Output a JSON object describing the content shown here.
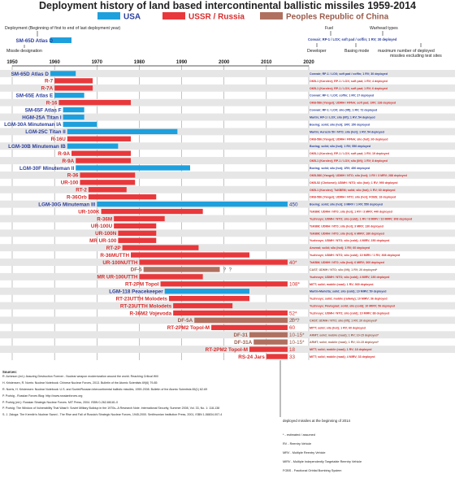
{
  "colors": {
    "usa": "#1ea0dd",
    "ussr": "#e8383b",
    "china": "#b07060",
    "ussr_label": "#d62b2b",
    "usa_label": "#2a3f9d",
    "china_label": "#9a5a4a",
    "grid": "#888888",
    "band": "#e6e6e6"
  },
  "chart_data": {
    "type": "bar",
    "title": "Deployment history of land based intercontinental ballistic missiles 1959-2014",
    "xlim": [
      1950,
      2020
    ],
    "xticks": [
      1950,
      1960,
      1970,
      1980,
      1990,
      2000,
      2010,
      2020
    ],
    "legend": [
      {
        "name": "USA",
        "country": "usa"
      },
      {
        "name": "USSR / Russia",
        "country": "ussr"
      },
      {
        "name": "Peoples Republic of China",
        "country": "china"
      }
    ],
    "explanation": {
      "deployment": "Deployment (Beginning of first to end of last deployment year)",
      "designation": "Missile designation",
      "example_label": "SM-65D Atlas D",
      "example_bar": [
        1959,
        1964
      ],
      "fuel": "Fuel",
      "warhead_types": "Warhead types",
      "example_desc": "Convair; RP-1 / LOX; soft pad / coffin; 1 RV; 30 deployed",
      "developer": "Developer",
      "basing_mode": "Basing mode",
      "max_deployed": "maximum number of deployed missiles excluding test sites"
    },
    "series": [
      {
        "name": "SM-65D Atlas D",
        "country": "usa",
        "start": 1959,
        "end": 1964,
        "desc": "Convair; RP-1 / LOX; soft pad / coffin; 1 RV; 30 deployed"
      },
      {
        "name": "R-7",
        "country": "ussr",
        "start": 1960,
        "end": 1968,
        "desc": "OKB-1 (Korolev); RP-1 / LOX; soft pad; 1 RV; 4 deployed"
      },
      {
        "name": "R-7A",
        "country": "ussr",
        "start": 1960,
        "end": 1968,
        "desc": "OKB-1 (Korolev); RP-1 / LOX; soft pad; 1 RV; 6 deployed"
      },
      {
        "name": "SM-65E Atlas E",
        "country": "usa",
        "start": 1960,
        "end": 1966,
        "desc": "Convair; RP-1 / LOX; coffin; 1 RV; 27 deployed"
      },
      {
        "name": "R-16",
        "country": "ussr",
        "start": 1961,
        "end": 1977,
        "desc": "OKB-586 (Yangel); UDMH / RFNA; soft pad; 1RV; 138 deployed"
      },
      {
        "name": "SM-65F Atlas F",
        "country": "usa",
        "start": 1962,
        "end": 1966,
        "desc": "Convair; RP-1 / LOX; silo (lift); 1 RV; 72 deployed"
      },
      {
        "name": "HGM-25A Titan I",
        "country": "usa",
        "start": 1962,
        "end": 1966,
        "desc": "Martin; RP-1 / LOX; silo (lift); 1 RV; 54 deployed"
      },
      {
        "name": "LGM-30A Minuteman IA",
        "country": "usa",
        "start": 1962,
        "end": 1969,
        "desc": "Boeing; solid; silo (hot); 1RV; 150 deployed"
      },
      {
        "name": "LGM-25C Titan II",
        "country": "usa",
        "start": 1963,
        "end": 1988,
        "desc": "Martin; Aerozin 50 / NTO; silo (hot); 1 RV; 54 deployed"
      },
      {
        "name": "R-16U",
        "country": "ussr",
        "start": 1963,
        "end": 1977,
        "desc": "OKB-586 (Yangel); UDMH / RFNA; silo (hot); 60 deployed"
      },
      {
        "name": "LGM-30B Minuteman IB",
        "country": "usa",
        "start": 1963,
        "end": 1974,
        "desc": "Boeing; solid; silo (hot); 1 RV; 550 deployed"
      },
      {
        "name": "R-9A",
        "country": "ussr",
        "start": 1964,
        "end": 1977,
        "desc": "OKB-1 (Korolev); RP-1 / LOX; soft pad; 1 RV; 19 deployed"
      },
      {
        "name": "R-9A",
        "country": "ussr",
        "start": 1965,
        "end": 1977,
        "desc": "OKB-1 (Korolev); RP-1 / LOX; silo (lift); 1 RV; 8 deployed"
      },
      {
        "name": "LGM-30F Minuteman II",
        "country": "usa",
        "start": 1965,
        "end": 1991,
        "desc": "Boeing; solid; silo (hot); 1RV; 450 deployed"
      },
      {
        "name": "R-36",
        "country": "ussr",
        "start": 1966,
        "end": 1978,
        "desc": "OKB-586 (Yangel); UDMH / NTO; silo (hot); 1 RV / 3 MRV; 288 deployed"
      },
      {
        "name": "UR-100",
        "country": "ussr",
        "start": 1966,
        "end": 1978,
        "desc": "OKB-52 (Chelomei); UDMH / NTO; silo (hot); 1 RV; 990 deployed"
      },
      {
        "name": "RT-2",
        "country": "ussr",
        "start": 1968,
        "end": 1976,
        "desc": "OKB-1 (Korolev); TsKBEM; solid; silo (hot); 1 RV; 60 deployed"
      },
      {
        "name": "R-36Orb",
        "country": "ussr",
        "start": 1968,
        "end": 1983,
        "desc": "OKB-586 (Yangel); UDMH / NTO; silo (hot); FOBS; 18 deployed"
      },
      {
        "name": "LGM-30G Minuteman III",
        "country": "usa",
        "start": 1970,
        "end": 2014,
        "desc": "Boeing; solid; silo (hot); 3 MIRV / 1 RV; 550 deployed",
        "value_label": "450"
      },
      {
        "name": "UR-100K",
        "country": "ussr",
        "start": 1971,
        "end": 1994,
        "desc": "TsKBM; UDMH / NTO; silo (hot); 1 RV / 3 MRV; 440 deployed"
      },
      {
        "name": "R-36M",
        "country": "ussr",
        "start": 1974,
        "end": 1985,
        "desc": "Yuzhnoye; UDMH / NTO; silo (cold); 1 RV / 8 MIRV / 10 MIRV; 308 deployed"
      },
      {
        "name": "UR-100U",
        "country": "ussr",
        "start": 1974,
        "end": 1983,
        "desc": "TsKBM; UDMH / NTO; silo (hot); 3 MRV; 130 deployed"
      },
      {
        "name": "UR-100N",
        "country": "ussr",
        "start": 1975,
        "end": 1983,
        "desc": "TsKBM; UDMH / NTO; silo (hot); 6 MIRV; 180 deployed"
      },
      {
        "name": "MR UR-100",
        "country": "ussr",
        "start": 1975,
        "end": 1983,
        "desc": "Yuzhnoye; UDMH / NTO; silo (cold); 4 MIRV; 150 deployed"
      },
      {
        "name": "RT-2P",
        "country": "ussr",
        "start": 1976,
        "end": 1993,
        "desc": "Arsenal; solid; silo (hot); 1 RV; 60 deployed"
      },
      {
        "name": "R-36MUTTH",
        "country": "ussr",
        "start": 1978,
        "end": 2005,
        "desc": "Yuzhnoye; UDMH / NTO; silo (cold); 10 MIRV / 1 RV; 308 deployed"
      },
      {
        "name": "UR-100NUTTH",
        "country": "ussr",
        "start": 1980,
        "end": 2014,
        "desc": "TsKBM; UDMH / NTO; silo (hot); 6 MIRV; 360 deployed",
        "value_label": "40*"
      },
      {
        "name": "DF-5",
        "country": "china",
        "start": 1981,
        "end": 1998,
        "desc": "CAST; UDMH / NTO; silo (lift); 1 RV; 20 deployed*",
        "question": true
      },
      {
        "name": "MR UR-100UTTH",
        "country": "ussr",
        "start": 1980,
        "end": 1994,
        "desc": "Yuzhnoye; UDMH / NTO; silo (cold); 4 MIRV; 150 deployed"
      },
      {
        "name": "RT-2PM Topol",
        "country": "ussr",
        "start": 1985,
        "end": 2014,
        "desc": "MITT; solid; mobile (road); 1 RV; 369 deployed",
        "value_label": "108*"
      },
      {
        "name": "LGM-118 Peacekeeper",
        "country": "usa",
        "start": 1986,
        "end": 2005,
        "desc": "Martin-Marietta; solid; silo (cold); 10 MIRV; 50 deployed"
      },
      {
        "name": "RT-23UTTH Molodets",
        "country": "ussr",
        "start": 1987,
        "end": 2005,
        "desc": "Yuzhnoye; solid; mobile (railway); 10 MIRV; 36 deployed"
      },
      {
        "name": "RT-23UTTH Molodets",
        "country": "ussr",
        "start": 1988,
        "end": 2001,
        "desc": "Yuzhnoye; Pavlograd; solid; silo (cold); 10 MIRV; 56 deployed"
      },
      {
        "name": "R-36M2 Vojevoda",
        "country": "ussr",
        "start": 1988,
        "end": 2014,
        "desc": "Yuzhnoye; UDMH / NTO; silo (cold); 10 MIRV; 88 deployed",
        "value_label": "52*"
      },
      {
        "name": "DF-5A",
        "country": "china",
        "start": 1993,
        "end": 2014,
        "desc": "CAST; UDMH / NTO; silo (lift); 1 RV; 20 deployed*",
        "question": true,
        "value_label": "20*"
      },
      {
        "name": "RT-2PM2 Topol-M",
        "country": "ussr",
        "start": 1997,
        "end": 2014,
        "desc": "MITT; solid; silo (hot); 1 RV; 60 deployed",
        "value_label": "60"
      },
      {
        "name": "DF-31",
        "country": "china",
        "start": 2006,
        "end": 2014,
        "desc": "ARMT; solid; mobile (road); 1 RV; 10-15 deployed*",
        "value_label": "10-15*"
      },
      {
        "name": "DF-31A",
        "country": "china",
        "start": 2007,
        "end": 2014,
        "desc": "ARMT; solid; mobile (road); 1 RV; 10-15 deployed*",
        "value_label": "10-15*"
      },
      {
        "name": "RT-2PM2 Topol-M",
        "country": "ussr",
        "start": 2006,
        "end": 2014,
        "desc": "MITT; solid; mobile (road); 1 RV; 18 deployed",
        "value_label": "18"
      },
      {
        "name": "RS-24 Jars",
        "country": "ussr",
        "start": 2010,
        "end": 2014,
        "desc": "MITT; solid; mobile (road); 4 MIRV; 33 deployed",
        "value_label": "33"
      }
    ],
    "annotation": "deployed missiles at the beginning of 2014"
  },
  "sources": {
    "title": "Sources:",
    "lines": [
      "R. Acheson (ed.): Assuring Destruction Forever - Nuclear weapon modernization around the world. Reaching Critical Will",
      "H. Kristensen, R. Norris: Nuclear Notebook: Chinese Nuclear Forces, 2013. Bulletin of the Atomic Scientists 69(6) 79-85",
      "R. Norris, H. Kristensen: Nuclear Notebook: U.S. and Soviet/Russian intercontinental ballistic missiles, 1959-2008. Bulletin of the Atomic Scientists 65(1) 62-69",
      "P. Podvig - Russian Forces Blog: http://www.russianforces.org",
      "P. Podvig (ed.): Russian Strategic Nuclear Forces. MIT Press, 2004. ISBN 0-262-66181-0",
      "P. Podvig: The Window of Vulnerability That Wasn't: Soviet Military Buildup in the 1970s--A Research Note. International Security, Summer 2008, Vol. 33, No. 1: 118-138",
      "S. J. Zaloga: The Kremlin's Nuclear Sword - The Rise and Fall of Russia's Strategic Nuclear Forces, 1945-2000. Smithsonian Institution Press, 2001, ISBN 1-58834-007-4"
    ]
  },
  "glossary": [
    "* - estimated / assumed",
    "RV - Reentry Vehicle",
    "MRV - Multiple Reentry Vehicle",
    "MIRV - Multiple Independently Targetable Reentry Vehicle",
    "FOBS - Fractional Orbital Bombing System"
  ]
}
